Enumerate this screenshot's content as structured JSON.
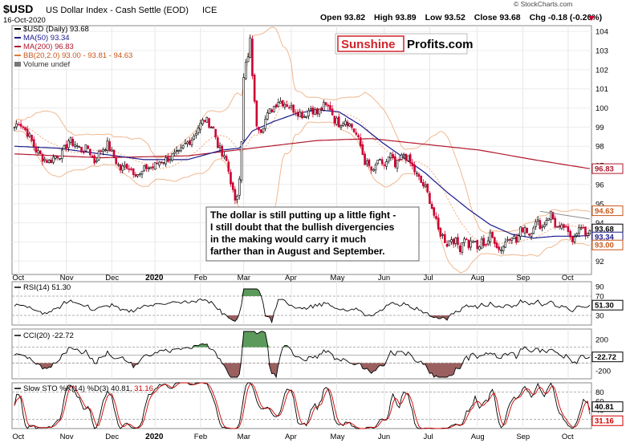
{
  "header": {
    "symbol": "$USD",
    "name": "US Dollar Index - Cash Settle (EOD)",
    "exchange": "ICE",
    "date": "16-Oct-2020",
    "open_label": "Open",
    "open": "93.82",
    "high_label": "High",
    "high": "93.89",
    "low_label": "Low",
    "low": "93.52",
    "close_label": "Close",
    "close": "93.68",
    "chg_label": "Chg",
    "chg": "-0.18 (-0.20%)",
    "watermark": "© StockCharts.com"
  },
  "logo": {
    "part1": "Sunshine",
    "part2": "Profits.com"
  },
  "legend": {
    "price": "$USD (Daily) 93.68",
    "ma50": "MA(50) 93.34",
    "ma200": "MA(200) 96.83",
    "bb": "BB(20,2.0) 93.00 - 93.81 - 94.63",
    "volume": "Volume undef"
  },
  "annotation": {
    "lines": [
      "The dollar is still putting up a little fight -",
      "I still doubt that the bullish divergencies",
      "in the making would carry it much",
      "farther than in August and September."
    ]
  },
  "colors": {
    "up": "#000000",
    "down": "#cc0033",
    "ma50": "#1a1a8c",
    "ma200": "#b0182c",
    "bb": "#f0b890",
    "bb_mid": "#f0a878",
    "osc_pos": "#5c9a5c",
    "osc_neg": "#9a6060",
    "sto_k": "#000000",
    "sto_d": "#cc0000",
    "logo_red": "#d2232a",
    "logo_bg": "#ffffff"
  },
  "chart_data": {
    "type": "financial",
    "x_labels": [
      "Oct",
      "Nov",
      "Dec",
      "2020",
      "Feb",
      "Mar",
      "Apr",
      "May",
      "Jun",
      "Jul",
      "Aug",
      "Sep",
      "Oct"
    ],
    "x_label_index": [
      2,
      24,
      45,
      65,
      86,
      106,
      128,
      149,
      171,
      192,
      214,
      235,
      256
    ],
    "price_panel": {
      "yticks": [
        92,
        93,
        94,
        95,
        96,
        97,
        98,
        99,
        100,
        101,
        102,
        103,
        104
      ],
      "ylim": [
        91.3,
        104.3
      ],
      "price_tags": [
        {
          "value": "96.83",
          "y": 96.83,
          "kind": "ma200"
        },
        {
          "value": "94.63",
          "y": 94.63,
          "kind": "bb"
        },
        {
          "value": "93.68",
          "y": 93.68,
          "kind": "close"
        },
        {
          "value": "93.34",
          "y": 93.34,
          "kind": "ma50"
        },
        {
          "value": "93.00",
          "y": 93.0,
          "kind": "bb"
        }
      ],
      "close_anchors": [
        [
          0,
          99.0
        ],
        [
          2,
          99.3
        ],
        [
          6,
          98.7
        ],
        [
          10,
          97.8
        ],
        [
          13,
          97.4
        ],
        [
          16,
          97.2
        ],
        [
          19,
          97.5
        ],
        [
          22,
          97.6
        ],
        [
          25,
          98.3
        ],
        [
          28,
          98.1
        ],
        [
          31,
          97.8
        ],
        [
          34,
          97.9
        ],
        [
          37,
          97.2
        ],
        [
          40,
          97.8
        ],
        [
          43,
          98.1
        ],
        [
          46,
          97.4
        ],
        [
          49,
          96.8
        ],
        [
          52,
          97.0
        ],
        [
          55,
          96.7
        ],
        [
          58,
          96.5
        ],
        [
          61,
          96.9
        ],
        [
          64,
          96.9
        ],
        [
          67,
          97.2
        ],
        [
          70,
          97.3
        ],
        [
          73,
          97.5
        ],
        [
          76,
          97.6
        ],
        [
          79,
          98.1
        ],
        [
          82,
          98.4
        ],
        [
          85,
          99.0
        ],
        [
          88,
          99.4
        ],
        [
          90,
          99.2
        ],
        [
          92,
          98.9
        ],
        [
          94,
          98.1
        ],
        [
          96,
          97.5
        ],
        [
          98,
          97.2
        ],
        [
          100,
          96.2
        ],
        [
          102,
          95.0
        ],
        [
          103,
          95.5
        ],
        [
          104,
          96.5
        ],
        [
          105,
          98.4
        ],
        [
          106,
          101.5
        ],
        [
          107,
          102.3
        ],
        [
          108,
          102.6
        ],
        [
          109,
          103.5
        ],
        [
          110,
          101.8
        ],
        [
          111,
          100.2
        ],
        [
          112,
          99.2
        ],
        [
          114,
          98.9
        ],
        [
          116,
          99.4
        ],
        [
          118,
          99.8
        ],
        [
          120,
          100.1
        ],
        [
          122,
          100.4
        ],
        [
          124,
          100.3
        ],
        [
          126,
          100.2
        ],
        [
          128,
          100.0
        ],
        [
          131,
          99.8
        ],
        [
          134,
          99.6
        ],
        [
          137,
          100.0
        ],
        [
          140,
          99.7
        ],
        [
          143,
          100.1
        ],
        [
          146,
          100.0
        ],
        [
          148,
          99.4
        ],
        [
          150,
          99.2
        ],
        [
          153,
          99.4
        ],
        [
          156,
          99.0
        ],
        [
          158,
          98.6
        ],
        [
          160,
          98.0
        ],
        [
          162,
          97.2
        ],
        [
          164,
          96.9
        ],
        [
          166,
          96.6
        ],
        [
          168,
          97.3
        ],
        [
          170,
          96.9
        ],
        [
          172,
          97.2
        ],
        [
          174,
          97.5
        ],
        [
          176,
          96.9
        ],
        [
          178,
          97.2
        ],
        [
          180,
          97.6
        ],
        [
          182,
          97.3
        ],
        [
          184,
          96.9
        ],
        [
          186,
          96.5
        ],
        [
          188,
          96.1
        ],
        [
          190,
          95.8
        ],
        [
          192,
          95.2
        ],
        [
          194,
          94.4
        ],
        [
          196,
          93.6
        ],
        [
          198,
          93.3
        ],
        [
          200,
          92.9
        ],
        [
          202,
          93.2
        ],
        [
          204,
          93.0
        ],
        [
          206,
          92.7
        ],
        [
          208,
          93.3
        ],
        [
          210,
          92.8
        ],
        [
          212,
          93.1
        ],
        [
          214,
          92.6
        ],
        [
          216,
          93.0
        ],
        [
          218,
          92.9
        ],
        [
          220,
          93.3
        ],
        [
          222,
          93.1
        ],
        [
          224,
          92.6
        ],
        [
          226,
          92.8
        ],
        [
          228,
          93.2
        ],
        [
          230,
          93.4
        ],
        [
          232,
          93.0
        ],
        [
          234,
          93.6
        ],
        [
          236,
          93.8
        ],
        [
          238,
          93.4
        ],
        [
          240,
          93.9
        ],
        [
          242,
          94.0
        ],
        [
          244,
          93.8
        ],
        [
          246,
          94.2
        ],
        [
          248,
          94.5
        ],
        [
          250,
          93.9
        ],
        [
          252,
          93.6
        ],
        [
          254,
          93.8
        ],
        [
          256,
          93.4
        ],
        [
          258,
          93.2
        ],
        [
          260,
          93.6
        ],
        [
          262,
          93.7
        ],
        [
          264,
          93.4
        ],
        [
          266,
          93.68
        ]
      ],
      "ma50_anchors": [
        [
          0,
          98.0
        ],
        [
          20,
          97.9
        ],
        [
          40,
          97.6
        ],
        [
          60,
          97.3
        ],
        [
          80,
          97.3
        ],
        [
          96,
          97.8
        ],
        [
          104,
          97.9
        ],
        [
          110,
          98.8
        ],
        [
          120,
          99.3
        ],
        [
          130,
          99.7
        ],
        [
          140,
          99.9
        ],
        [
          150,
          99.8
        ],
        [
          160,
          99.1
        ],
        [
          170,
          98.2
        ],
        [
          180,
          97.4
        ],
        [
          190,
          96.6
        ],
        [
          200,
          95.6
        ],
        [
          210,
          94.7
        ],
        [
          220,
          93.9
        ],
        [
          230,
          93.4
        ],
        [
          240,
          93.2
        ],
        [
          250,
          93.3
        ],
        [
          260,
          93.3
        ],
        [
          266,
          93.34
        ]
      ],
      "ma200_anchors": [
        [
          0,
          97.6
        ],
        [
          40,
          97.4
        ],
        [
          80,
          97.5
        ],
        [
          110,
          97.9
        ],
        [
          140,
          98.3
        ],
        [
          165,
          98.4
        ],
        [
          190,
          98.1
        ],
        [
          215,
          97.8
        ],
        [
          240,
          97.3
        ],
        [
          266,
          96.83
        ]
      ],
      "trend_line": [
        [
          243,
          94.6
        ],
        [
          266,
          94.2
        ]
      ]
    },
    "rsi": {
      "label": "RSI(14) 51.30",
      "yticks": [
        30,
        50,
        70,
        90
      ],
      "ylim": [
        10,
        100
      ],
      "levels": [
        30,
        70
      ],
      "tag": "51.30",
      "last": 51.3
    },
    "cci": {
      "label": "CCI(20) -22.72",
      "yticks": [
        -200,
        0,
        200
      ],
      "ylim": [
        -300,
        330
      ],
      "levels": [
        -100,
        0,
        100
      ],
      "tag": "-22.72",
      "last": -22.72
    },
    "sto": {
      "label_k": "Slow STO %K(14) %D(3) 40.81,",
      "label_d": "31.16",
      "yticks": [
        20,
        40,
        60,
        80
      ],
      "ylim": [
        0,
        100
      ],
      "levels": [
        20,
        80
      ],
      "tag_k": "40.81",
      "tag_d": "31.16",
      "last_k": 40.81,
      "last_d": 31.16
    }
  }
}
